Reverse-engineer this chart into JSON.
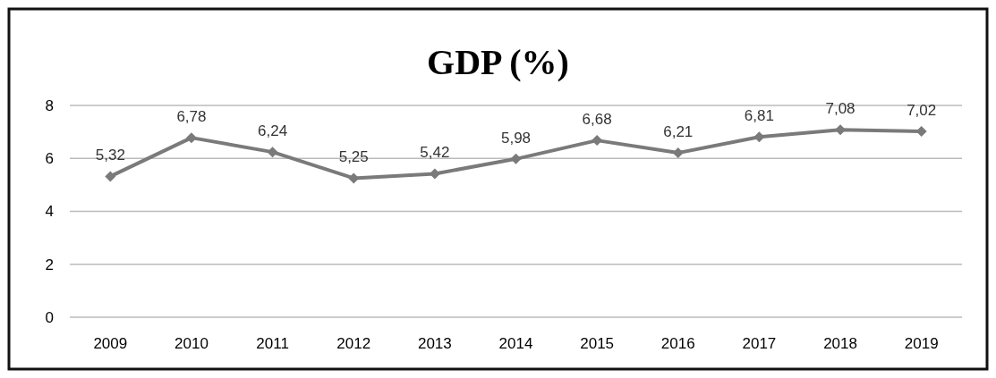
{
  "chart_data": {
    "type": "line",
    "title": "GDP (%)",
    "categories": [
      "2009",
      "2010",
      "2011",
      "2012",
      "2013",
      "2014",
      "2015",
      "2016",
      "2017",
      "2018",
      "2019"
    ],
    "values": [
      5.32,
      6.78,
      6.24,
      5.25,
      5.42,
      5.98,
      6.68,
      6.21,
      6.81,
      7.08,
      7.02
    ],
    "value_labels": [
      "5,32",
      "6,78",
      "6,24",
      "5,25",
      "5,42",
      "5,98",
      "6,68",
      "6,21",
      "6,81",
      "7,08",
      "7,02"
    ],
    "color": "#7a7a7a",
    "ylim": [
      0,
      8
    ],
    "yticks": [
      0,
      2,
      4,
      6,
      8
    ],
    "grid": "y",
    "marker": "diamond",
    "line_style": "solid"
  }
}
